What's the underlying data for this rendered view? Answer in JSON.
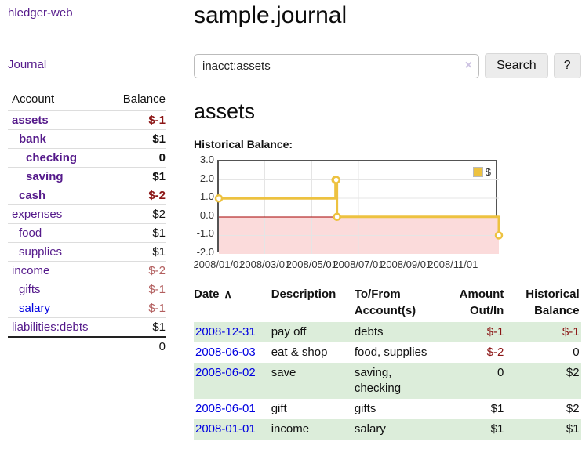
{
  "app": {
    "brand": "hledger-web",
    "nav_journal": "Journal"
  },
  "colors": {
    "visited_link_purple": "#551a8b",
    "link_blue": "#0000e0",
    "negative_dark_red": "#8b1515",
    "negative_rose": "#b25e5e",
    "row_stripe_green": "#dcedda",
    "chart_line_yellow": "#edc240",
    "chart_negative_pink": "#fbdbdb",
    "chart_zero_line_red": "#a40000"
  },
  "sidebar": {
    "table_headers": {
      "account": "Account",
      "balance": "Balance"
    },
    "accounts": [
      {
        "name": "assets",
        "level": 1,
        "bold": true,
        "link_color": "purple",
        "balance": "$-1",
        "balance_color": "darkred",
        "balance_bold": true
      },
      {
        "name": "bank",
        "level": 2,
        "bold": true,
        "link_color": "purple",
        "balance": "$1",
        "balance_color": "black",
        "balance_bold": true
      },
      {
        "name": "checking",
        "level": 3,
        "bold": true,
        "link_color": "purple",
        "balance": "0",
        "balance_color": "black",
        "balance_bold": true
      },
      {
        "name": "saving",
        "level": 3,
        "bold": true,
        "link_color": "purple",
        "balance": "$1",
        "balance_color": "black",
        "balance_bold": true
      },
      {
        "name": "cash",
        "level": 2,
        "bold": true,
        "link_color": "purple",
        "balance": "$-2",
        "balance_color": "darkred",
        "balance_bold": true
      },
      {
        "name": "expenses",
        "level": 1,
        "bold": false,
        "link_color": "purple",
        "balance": "$2",
        "balance_color": "black",
        "balance_bold": false
      },
      {
        "name": "food",
        "level": 2,
        "bold": false,
        "link_color": "purple",
        "balance": "$1",
        "balance_color": "black",
        "balance_bold": false
      },
      {
        "name": "supplies",
        "level": 2,
        "bold": false,
        "link_color": "purple",
        "balance": "$1",
        "balance_color": "black",
        "balance_bold": false
      },
      {
        "name": "income",
        "level": 1,
        "bold": false,
        "link_color": "purple",
        "balance": "$-2",
        "balance_color": "rose",
        "balance_bold": false
      },
      {
        "name": "gifts",
        "level": 2,
        "bold": false,
        "link_color": "purple",
        "balance": "$-1",
        "balance_color": "rose",
        "balance_bold": false
      },
      {
        "name": "salary",
        "level": 2,
        "bold": false,
        "link_color": "blue",
        "balance": "$-1",
        "balance_color": "rose",
        "balance_bold": false
      },
      {
        "name": "liabilities:debts",
        "level": 1,
        "bold": false,
        "link_color": "purple",
        "balance": "$1",
        "balance_color": "black",
        "balance_bold": false
      }
    ],
    "total": "0"
  },
  "main": {
    "title": "sample.journal",
    "search": {
      "value": "inacct:assets",
      "clear_icon": "×",
      "button": "Search",
      "help_button": "?"
    },
    "account_heading": "assets",
    "chart_heading": "Historical Balance:"
  },
  "chart_data": {
    "type": "line",
    "step": true,
    "title": "Historical Balance:",
    "x_start": "2008-01-01",
    "x_end": "2008-12-31",
    "series": [
      {
        "name": "$",
        "color": "#edc240",
        "points": [
          [
            "2008-01-01",
            1
          ],
          [
            "2008-06-01",
            2
          ],
          [
            "2008-06-02",
            2
          ],
          [
            "2008-06-03",
            0
          ],
          [
            "2008-12-31",
            -1
          ]
        ]
      }
    ],
    "ylim": [
      -2,
      3
    ],
    "y_ticks": [
      "3.0",
      "2.0",
      "1.0",
      "0.0",
      "-1.0",
      "-2.0"
    ],
    "x_tick_labels": [
      "2008/01/01",
      "2008/03/01",
      "2008/05/01",
      "2008/07/01",
      "2008/09/01",
      "2008/11/01"
    ],
    "grid": true,
    "legend_position": "top-right",
    "grid_color": "#e5e5e5",
    "negative_region_color": "#fbdbdb",
    "zero_line_color": "#a40000"
  },
  "register": {
    "columns": [
      {
        "lines": [
          "Date"
        ],
        "sort_icon": "∧",
        "align": "left"
      },
      {
        "lines": [
          "Description"
        ],
        "align": "left"
      },
      {
        "lines": [
          "To/From",
          "Account(s)"
        ],
        "align": "left"
      },
      {
        "lines": [
          "Amount",
          "Out/In"
        ],
        "align": "right"
      },
      {
        "lines": [
          "Historical",
          "Balance"
        ],
        "align": "right"
      }
    ],
    "rows": [
      {
        "date": "2008-12-31",
        "description": "pay off",
        "accounts": [
          "debts"
        ],
        "amount": "$-1",
        "amount_negative": true,
        "balance": "$-1",
        "balance_negative": true
      },
      {
        "date": "2008-06-03",
        "description": "eat & shop",
        "accounts": [
          "food, supplies"
        ],
        "amount": "$-2",
        "amount_negative": true,
        "balance": "0",
        "balance_negative": false
      },
      {
        "date": "2008-06-02",
        "description": "save",
        "accounts": [
          "saving,",
          "checking"
        ],
        "amount": "0",
        "amount_negative": false,
        "balance": "$2",
        "balance_negative": false
      },
      {
        "date": "2008-06-01",
        "description": "gift",
        "accounts": [
          "gifts"
        ],
        "amount": "$1",
        "amount_negative": false,
        "balance": "$2",
        "balance_negative": false
      },
      {
        "date": "2008-01-01",
        "description": "income",
        "accounts": [
          "salary"
        ],
        "amount": "$1",
        "amount_negative": false,
        "balance": "$1",
        "balance_negative": false
      }
    ]
  }
}
